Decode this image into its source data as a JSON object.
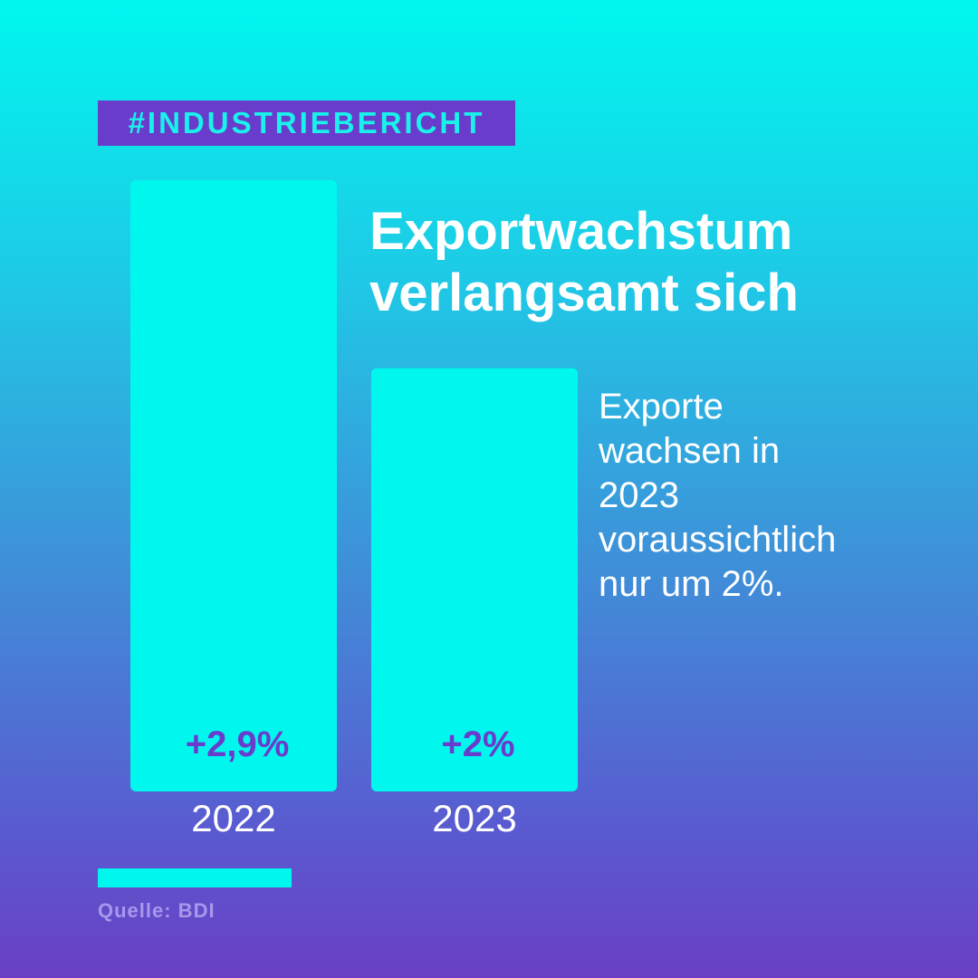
{
  "tag": "#INDUSTRIEBERICHT",
  "title_lines": [
    "Exportwachstum",
    "verlangsamt sich"
  ],
  "description_lines": [
    "Exporte",
    "wachsen in",
    "2023",
    "voraussichtlich",
    "nur um 2%."
  ],
  "source": "Quelle: BDI",
  "colors": {
    "bar": "#00f7ee",
    "value_label": "#6a3ccc",
    "category_label": "#ffffff",
    "tag_background": "#6a3ccc",
    "tag_text": "#19f2ea"
  },
  "chart_data": {
    "type": "bar",
    "categories": [
      "2022",
      "2023"
    ],
    "values": [
      2.9,
      2.0
    ],
    "value_labels": [
      "+2,9%",
      "+2%"
    ],
    "title": "Exportwachstum verlangsamt sich",
    "xlabel": "",
    "ylabel": "",
    "ylim": [
      0,
      2.9
    ],
    "grid": false,
    "legend": "none"
  }
}
